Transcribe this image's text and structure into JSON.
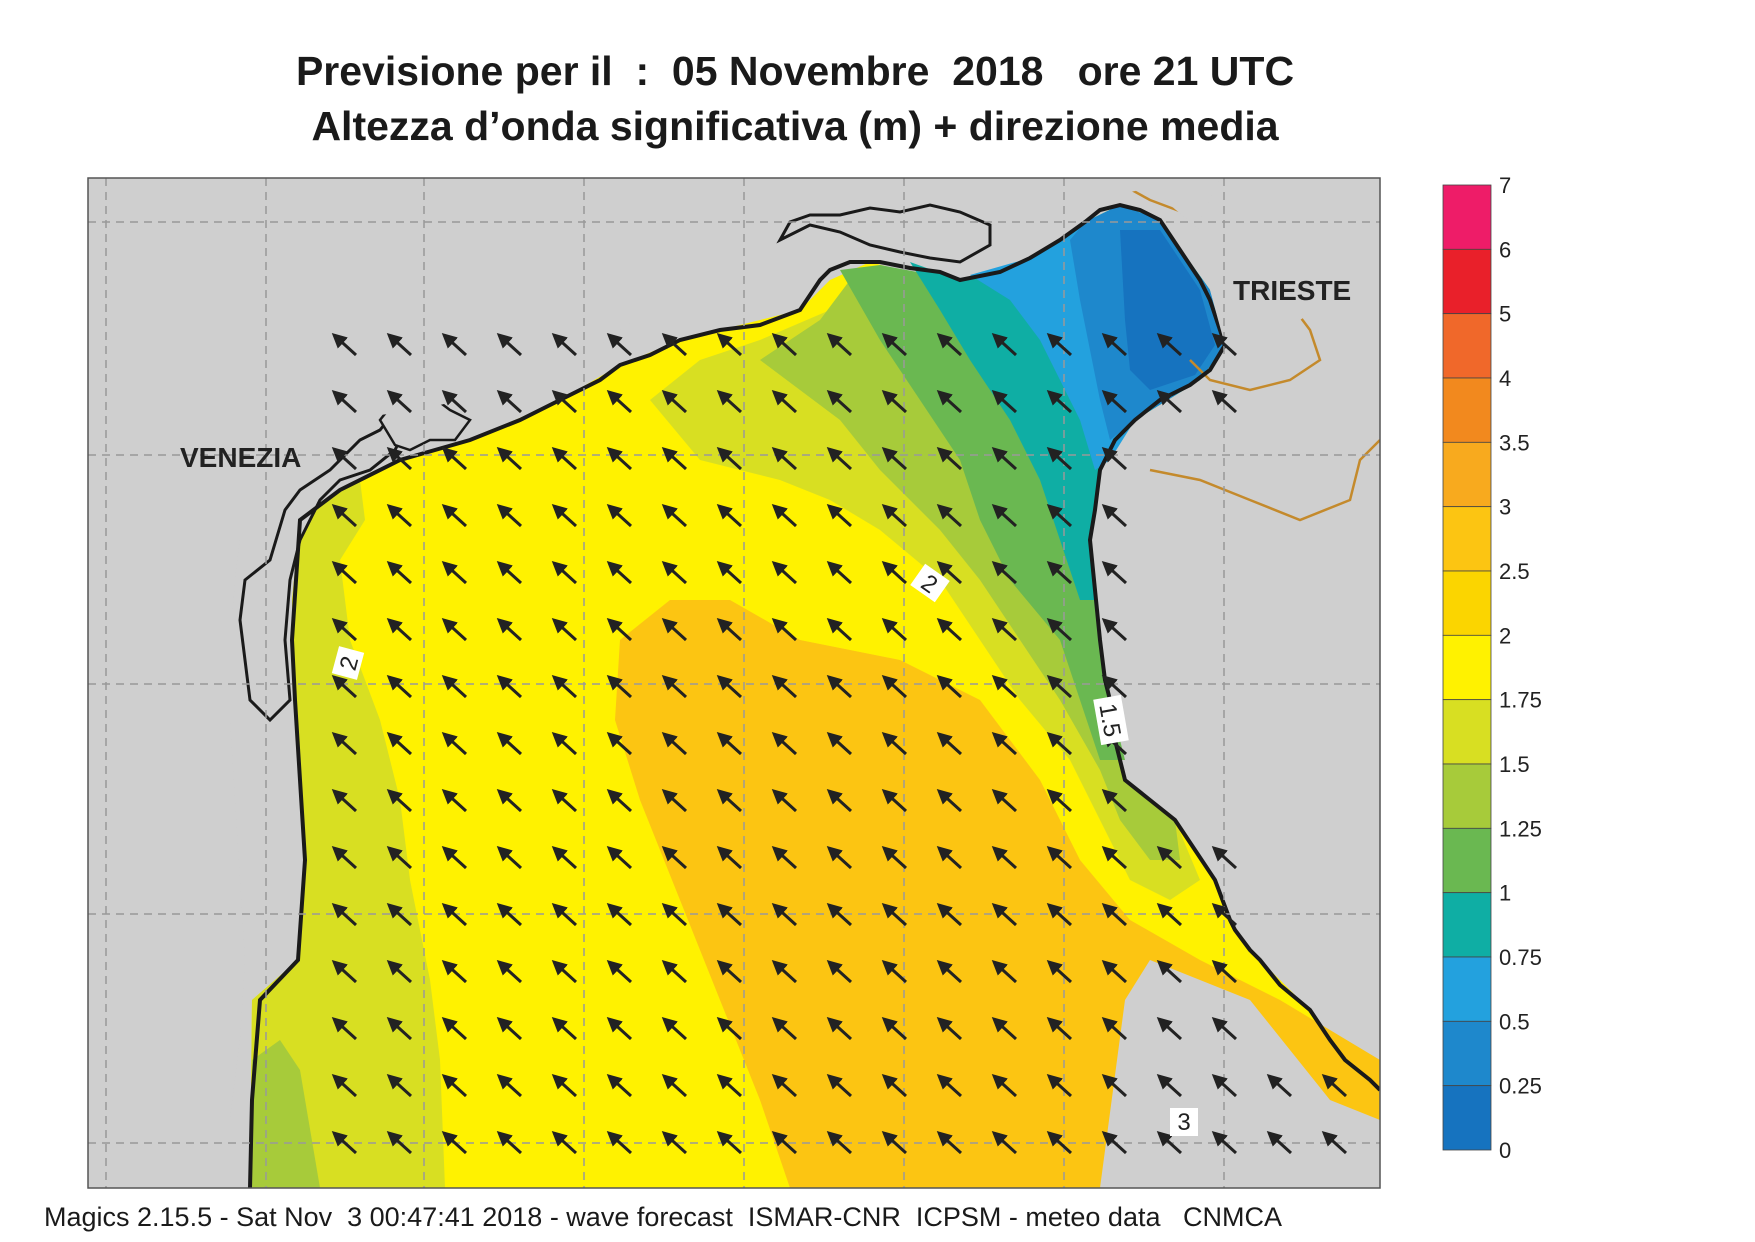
{
  "title": {
    "line1": "Previsione per il  :  05 Novembre  2018   ore 21 UTC",
    "line2": "Altezza d’onda significativa (m) + direzione media"
  },
  "places": {
    "venezia": "VENEZIA",
    "trieste": "TRIESTE"
  },
  "contour_labels": [
    "2",
    "2",
    "1.5",
    "3"
  ],
  "legend": {
    "levels": [
      "7",
      "6",
      "5",
      "4",
      "3.5",
      "3",
      "2.5",
      "2",
      "1.75",
      "1.5",
      "1.25",
      "1",
      "0.75",
      "0.5",
      "0.25",
      "0"
    ],
    "colors": [
      "#ee1c68",
      "#e9202a",
      "#f0682a",
      "#f2891e",
      "#f8aa1e",
      "#fcc512",
      "#fbd500",
      "#fff200",
      "#d8df22",
      "#a7cb3a",
      "#6ab851",
      "#0faea4",
      "#23a1de",
      "#1e88cc",
      "#1673bf",
      "#0d5aa8"
    ]
  },
  "colors": {
    "land": "#cfcfcf",
    "coast": "#1a1a1a",
    "border": "#c48a2c",
    "grid": "#999999"
  },
  "footer": "Magics 2.15.5 - Sat Nov  3 00:47:41 2018 - wave forecast  ISMAR-CNR  ICPSM - meteo data   CNMCA"
}
